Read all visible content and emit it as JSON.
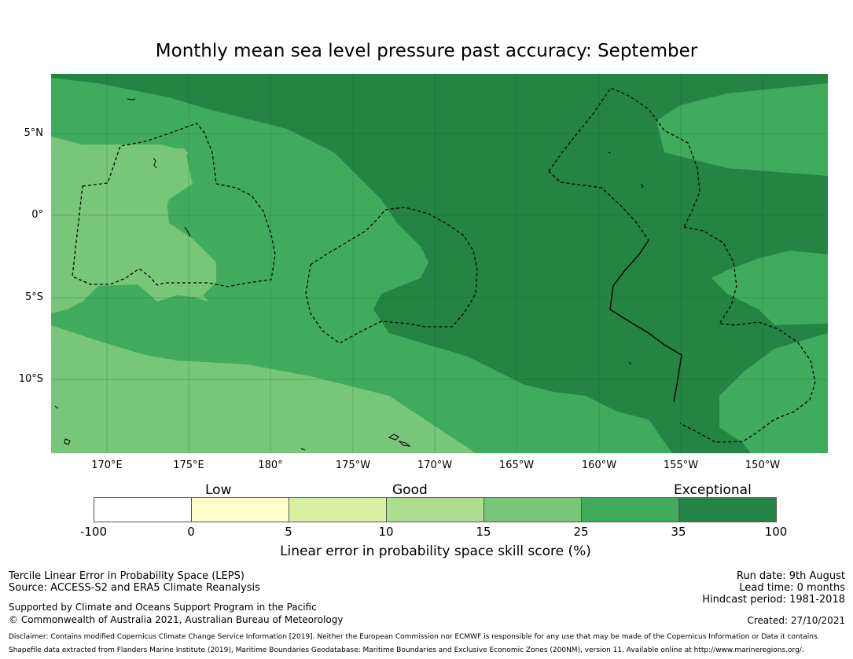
{
  "title": "Monthly mean sea level pressure past accuracy: September",
  "longitude_ticks": [
    "170°E",
    "175°E",
    "180°",
    "175°W",
    "170°W",
    "165°W",
    "160°W",
    "155°W",
    "150°W"
  ],
  "latitude_ticks": [
    "5°N",
    "0°",
    "5°S",
    "10°S"
  ],
  "colorbar": {
    "categories": [
      "Low",
      "Good",
      "Exceptional"
    ],
    "ticks": [
      "-100",
      "0",
      "5",
      "10",
      "15",
      "25",
      "35",
      "100"
    ],
    "colors": [
      "#ffffff",
      "#ffffcc",
      "#d9f0a3",
      "#addd8e",
      "#78c679",
      "#41ab5d",
      "#238443"
    ],
    "label": "Linear error in probability space skill score (%)"
  },
  "footer": {
    "left1": "Tercile Linear Error in Probability Space (LEPS)",
    "left2": "Source: ACCESS-S2 and ERA5 Climate Reanalysis",
    "left3": "Supported by Climate and Oceans Support Program in the Pacific",
    "left4": "© Commonwealth of Australia 2021, Australian Bureau of Meteorology",
    "run_date": "Run date: 9th August",
    "lead_time": "Lead time: 0 months",
    "hindcast": "Hindcast period: 1981-2018",
    "created": "Created: 27/10/2021",
    "disclaimer": "Disclaimer: Contains modified Copernicus Climate Change Service Information [2019]. Neither the European Commission nor ECMWF is responsible for any use that may be made of the Copernicus Information or Data it contains.",
    "shapefile": "Shapefile data extracted from Flanders Marine Institute (2019), Maritime Boundaries Geodatabase: Maritime Boundaries and Exclusive Economic Zones (200NM), version 11. Available online at http://www.marineregions.org/."
  }
}
